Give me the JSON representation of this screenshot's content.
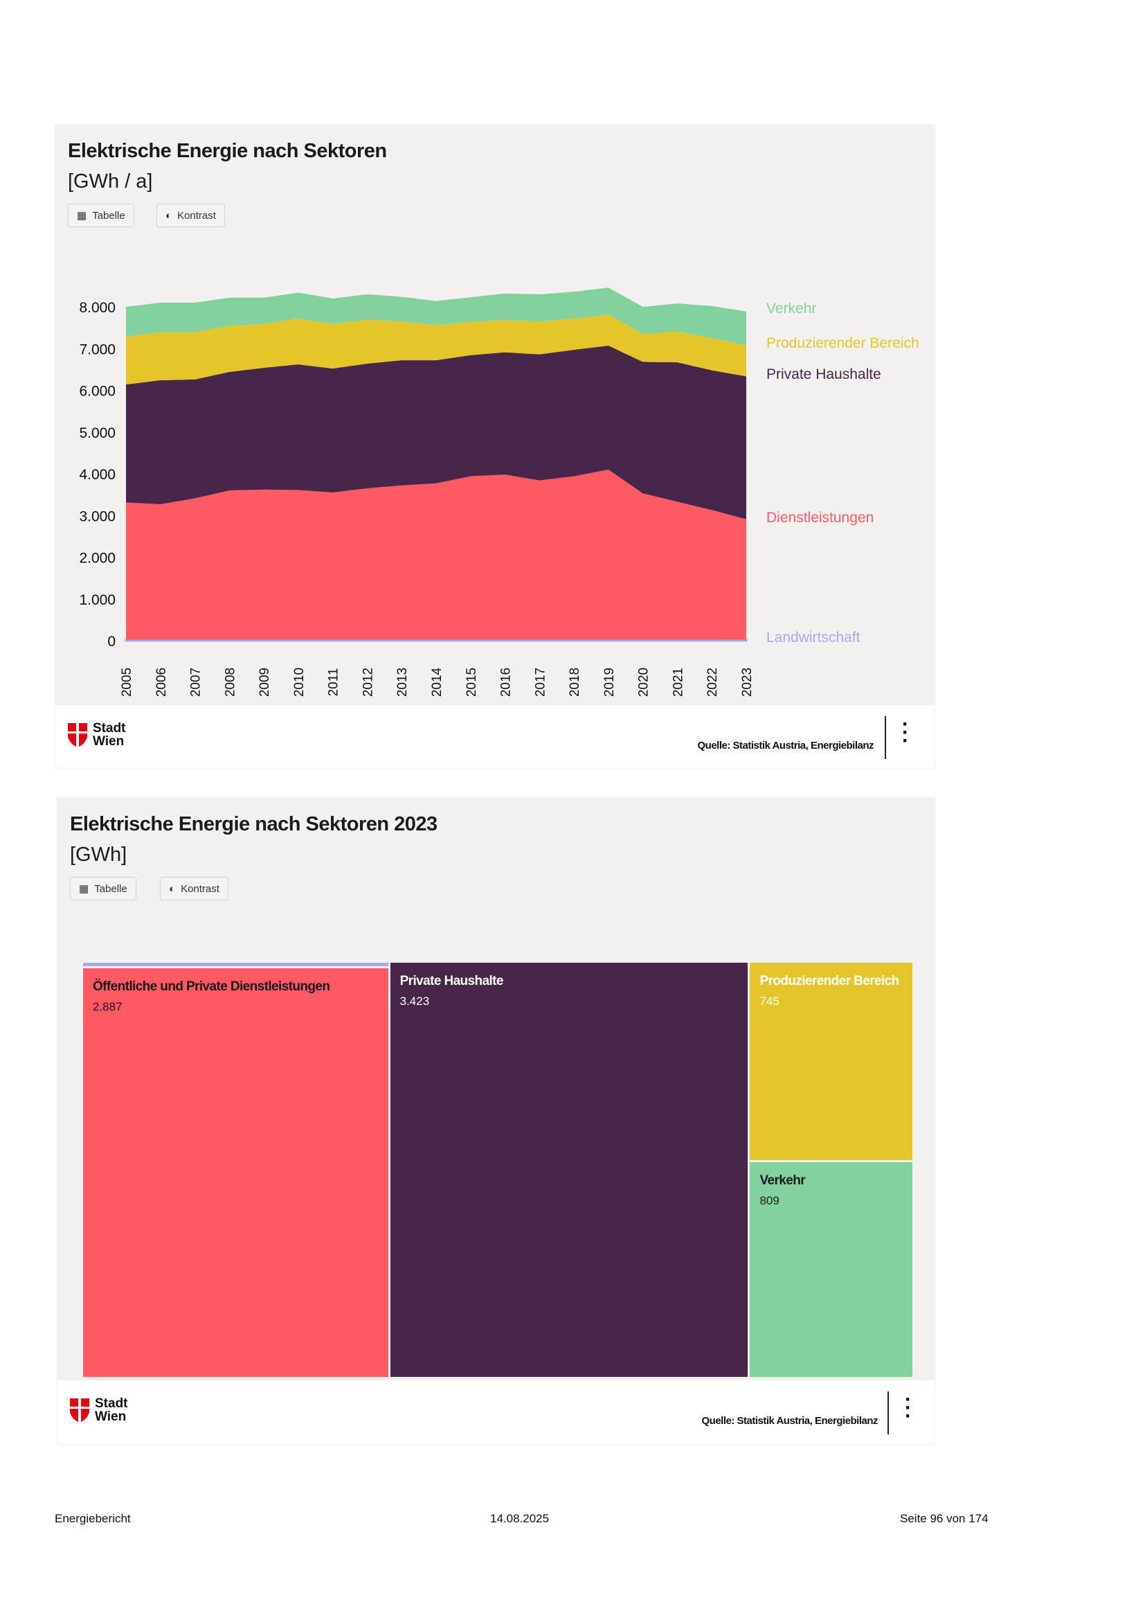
{
  "chart1": {
    "title": "Elektrische Energie nach Sektoren",
    "unit": "[GWh / a]",
    "buttons": {
      "table": "Tabelle",
      "contrast": "Kontrast"
    },
    "source": "Quelle: Statistik Austria, Energiebilanz",
    "logo": {
      "line1": "Stadt",
      "line2": "Wien"
    }
  },
  "chart2": {
    "title": "Elektrische Energie nach Sektoren 2023",
    "unit": "[GWh]",
    "buttons": {
      "table": "Tabelle",
      "contrast": "Kontrast"
    },
    "source": "Quelle: Statistik Austria, Energiebilanz",
    "logo": {
      "line1": "Stadt",
      "line2": "Wien"
    }
  },
  "page_footer": {
    "left": "Energiebericht",
    "center": "14.08.2025",
    "right": "Seite 96 von 174"
  },
  "colors": {
    "background": "#f2f1ef",
    "Landwirtschaft": "#a7a8f0",
    "Dienstleistungen": "#ff5a64",
    "Private Haushalte": "#47264a",
    "Produzierender Bereich": "#e5c62a",
    "Verkehr": "#82d19e"
  },
  "chart_data": [
    {
      "type": "area",
      "stacked": true,
      "title": "Elektrische Energie nach Sektoren",
      "ylabel": "[GWh / a]",
      "ylim": [
        0,
        8500
      ],
      "yticks": [
        "0",
        "1.000",
        "2.000",
        "3.000",
        "4.000",
        "5.000",
        "6.000",
        "7.000",
        "8.000"
      ],
      "ytick_values": [
        0,
        1000,
        2000,
        3000,
        4000,
        5000,
        6000,
        7000,
        8000
      ],
      "grid": false,
      "legend": "right",
      "x": [
        "2005",
        "2006",
        "2007",
        "2008",
        "2009",
        "2010",
        "2011",
        "2012",
        "2013",
        "2014",
        "2015",
        "2016",
        "2017",
        "2018",
        "2019",
        "2020",
        "2021",
        "2022",
        "2023"
      ],
      "series": [
        {
          "name": "Landwirtschaft",
          "values": [
            20,
            20,
            20,
            20,
            20,
            20,
            20,
            20,
            20,
            20,
            20,
            20,
            20,
            20,
            20,
            20,
            20,
            20,
            24
          ]
        },
        {
          "name": "Dienstleistungen",
          "values": [
            3290,
            3250,
            3390,
            3580,
            3600,
            3590,
            3530,
            3630,
            3700,
            3750,
            3920,
            3960,
            3820,
            3920,
            4080,
            3510,
            3310,
            3110,
            2887
          ]
        },
        {
          "name": "Private Haushalte",
          "values": [
            2830,
            2970,
            2850,
            2840,
            2920,
            3010,
            2970,
            2990,
            3000,
            2950,
            2900,
            2930,
            3020,
            3030,
            2970,
            3150,
            3340,
            3350,
            3423
          ]
        },
        {
          "name": "Produzierender Bereich",
          "values": [
            1150,
            1150,
            1130,
            1110,
            1050,
            1100,
            1070,
            1050,
            930,
            840,
            800,
            770,
            790,
            750,
            740,
            670,
            740,
            770,
            745
          ]
        },
        {
          "name": "Verkehr",
          "values": [
            710,
            710,
            710,
            670,
            630,
            620,
            610,
            610,
            590,
            580,
            590,
            640,
            650,
            640,
            650,
            650,
            670,
            770,
            809
          ]
        }
      ]
    },
    {
      "type": "treemap",
      "title": "Elektrische Energie nach Sektoren 2023",
      "unit": "[GWh]",
      "items": [
        {
          "name": "Landwirtschaft",
          "value": 24,
          "label": "",
          "value_label": ""
        },
        {
          "name": "Öffentliche und Private Dienstleistungen",
          "value": 2887,
          "label": "Öffentliche und Private Dienstleistungen",
          "value_label": "2.887",
          "text_color": "#1b1b1b"
        },
        {
          "name": "Private Haushalte",
          "value": 3423,
          "label": "Private Haushalte",
          "value_label": "3.423",
          "text_color": "#ffffff"
        },
        {
          "name": "Produzierender Bereich",
          "value": 745,
          "label": "Produzierender Bereich",
          "value_label": "745",
          "text_color": "#ffffff"
        },
        {
          "name": "Verkehr",
          "value": 809,
          "label": "Verkehr",
          "value_label": "809",
          "text_color": "#1b1b1b"
        }
      ]
    }
  ]
}
